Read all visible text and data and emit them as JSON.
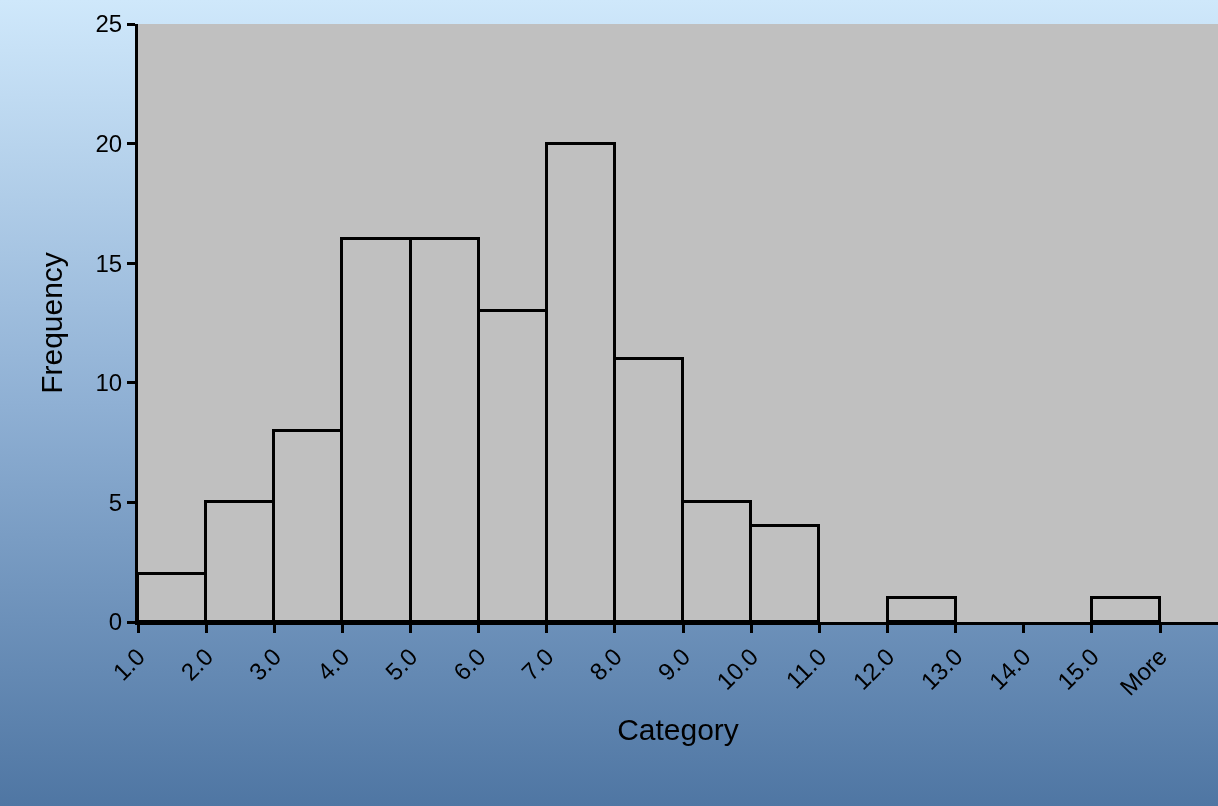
{
  "chart_data": {
    "type": "bar",
    "xlabel": "Category",
    "ylabel": "Frequency",
    "categories": [
      "1.0",
      "2.0",
      "3.0",
      "4.0",
      "5.0",
      "6.0",
      "7.0",
      "8.0",
      "9.0",
      "10.0",
      "11.0",
      "12.0",
      "13.0",
      "14.0",
      "15.0",
      "More"
    ],
    "values": [
      0,
      2,
      5,
      8,
      16,
      16,
      13,
      20,
      11,
      5,
      4,
      0,
      1,
      0,
      0,
      1
    ],
    "color": "#c0c0c0",
    "ylim": [
      0,
      25
    ],
    "yticks": [
      0,
      5,
      10,
      15,
      20,
      25
    ],
    "grid": false
  }
}
